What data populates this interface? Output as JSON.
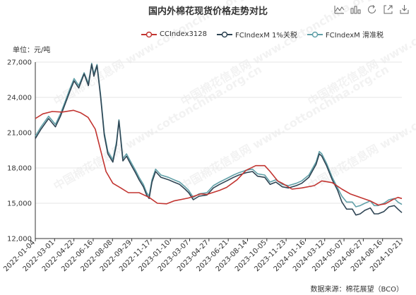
{
  "title": "国内外棉花现货价格走势对比",
  "toolbar": [
    {
      "name": "line-chart-icon"
    },
    {
      "name": "bar-chart-icon"
    },
    {
      "name": "restore-icon"
    },
    {
      "name": "data-view-icon"
    },
    {
      "name": "save-image-icon"
    }
  ],
  "unit_label": "单位：元/吨",
  "source": "数据来源：棉花展望（BCO）",
  "watermark": "中国棉花信息网 www.cottonchina.org.cn",
  "colors": {
    "cc": "#c23531",
    "fc1": "#2f4554",
    "fc2": "#61a0a8"
  },
  "chart_data": {
    "type": "line",
    "ylim": [
      12000,
      27000
    ],
    "yticks": [
      12000,
      15000,
      18000,
      21000,
      24000,
      27000
    ],
    "ytick_labels": [
      "12,000",
      "15,000",
      "18,000",
      "21,000",
      "24,000",
      "27,000"
    ],
    "xlim": [
      "2022-01-04",
      "2024-10-21"
    ],
    "xtick_labels": [
      "2022-01-04",
      "2022-03-01",
      "2022-04-22",
      "2022-06-16",
      "2022-08-08",
      "2022-09-29",
      "2022-11-17",
      "2023-01-10",
      "2023-03-07",
      "2023-04-27",
      "2023-06-21",
      "2023-08-14",
      "2023-10-05",
      "2023-11-23",
      "2024-01-16",
      "2024-03-12",
      "2024-05-07",
      "2024-06-27",
      "2024-08-16",
      "2024-10-21"
    ],
    "series": [
      {
        "name": "CCIndex3128",
        "color": "#c23531",
        "points": [
          [
            "2022-01-04",
            22200
          ],
          [
            "2022-01-25",
            22600
          ],
          [
            "2022-02-20",
            22800
          ],
          [
            "2022-03-20",
            22750
          ],
          [
            "2022-04-20",
            22900
          ],
          [
            "2022-05-10",
            22700
          ],
          [
            "2022-05-31",
            22300
          ],
          [
            "2022-06-20",
            21300
          ],
          [
            "2022-07-05",
            19500
          ],
          [
            "2022-07-20",
            17700
          ],
          [
            "2022-08-08",
            16700
          ],
          [
            "2022-08-30",
            16300
          ],
          [
            "2022-09-20",
            15900
          ],
          [
            "2022-10-20",
            15900
          ],
          [
            "2022-11-17",
            15500
          ],
          [
            "2022-12-10",
            15000
          ],
          [
            "2023-01-05",
            14950
          ],
          [
            "2023-01-25",
            15200
          ],
          [
            "2023-03-07",
            15450
          ],
          [
            "2023-04-10",
            15800
          ],
          [
            "2023-04-27",
            15750
          ],
          [
            "2023-06-01",
            16100
          ],
          [
            "2023-06-21",
            16350
          ],
          [
            "2023-07-20",
            17000
          ],
          [
            "2023-08-14",
            17800
          ],
          [
            "2023-09-10",
            18200
          ],
          [
            "2023-10-05",
            18200
          ],
          [
            "2023-10-20",
            17700
          ],
          [
            "2023-11-10",
            16900
          ],
          [
            "2023-11-23",
            16700
          ],
          [
            "2023-12-20",
            16200
          ],
          [
            "2024-01-16",
            16300
          ],
          [
            "2024-02-20",
            16500
          ],
          [
            "2024-03-12",
            16900
          ],
          [
            "2024-04-10",
            16750
          ],
          [
            "2024-05-07",
            16200
          ],
          [
            "2024-05-30",
            15800
          ],
          [
            "2024-06-27",
            15500
          ],
          [
            "2024-07-25",
            15200
          ],
          [
            "2024-08-16",
            14850
          ],
          [
            "2024-09-05",
            14950
          ],
          [
            "2024-09-25",
            15300
          ],
          [
            "2024-10-10",
            15500
          ],
          [
            "2024-10-21",
            15400
          ]
        ]
      },
      {
        "name": "FCIndexM 1%关税",
        "color": "#2f4554",
        "points": [
          [
            "2022-01-04",
            20500
          ],
          [
            "2022-01-20",
            21300
          ],
          [
            "2022-02-10",
            22200
          ],
          [
            "2022-03-01",
            21500
          ],
          [
            "2022-03-15",
            22400
          ],
          [
            "2022-03-25",
            23200
          ],
          [
            "2022-04-10",
            24500
          ],
          [
            "2022-04-22",
            25400
          ],
          [
            "2022-05-05",
            24800
          ],
          [
            "2022-05-20",
            26000
          ],
          [
            "2022-06-01",
            25000
          ],
          [
            "2022-06-10",
            26800
          ],
          [
            "2022-06-16",
            25800
          ],
          [
            "2022-06-25",
            26700
          ],
          [
            "2022-07-05",
            24000
          ],
          [
            "2022-07-15",
            20800
          ],
          [
            "2022-07-25",
            19200
          ],
          [
            "2022-08-08",
            18500
          ],
          [
            "2022-08-18",
            20000
          ],
          [
            "2022-08-25",
            22000
          ],
          [
            "2022-09-05",
            18600
          ],
          [
            "2022-09-15",
            19000
          ],
          [
            "2022-09-29",
            18200
          ],
          [
            "2022-10-10",
            17600
          ],
          [
            "2022-10-20",
            17000
          ],
          [
            "2022-11-01",
            16400
          ],
          [
            "2022-11-10",
            15700
          ],
          [
            "2022-11-17",
            15400
          ],
          [
            "2022-11-25",
            16800
          ],
          [
            "2022-12-05",
            17700
          ],
          [
            "2022-12-20",
            17200
          ],
          [
            "2023-01-10",
            17000
          ],
          [
            "2023-01-25",
            16800
          ],
          [
            "2023-02-10",
            16600
          ],
          [
            "2023-02-25",
            16200
          ],
          [
            "2023-03-07",
            15900
          ],
          [
            "2023-03-20",
            15300
          ],
          [
            "2023-04-05",
            15600
          ],
          [
            "2023-04-27",
            15700
          ],
          [
            "2023-05-15",
            16300
          ],
          [
            "2023-06-01",
            16600
          ],
          [
            "2023-06-21",
            16900
          ],
          [
            "2023-07-10",
            17200
          ],
          [
            "2023-07-25",
            17400
          ],
          [
            "2023-08-14",
            17600
          ],
          [
            "2023-09-01",
            17700
          ],
          [
            "2023-09-15",
            17300
          ],
          [
            "2023-10-05",
            17200
          ],
          [
            "2023-10-20",
            16600
          ],
          [
            "2023-11-05",
            16800
          ],
          [
            "2023-11-23",
            16400
          ],
          [
            "2023-12-10",
            16300
          ],
          [
            "2024-01-01",
            16500
          ],
          [
            "2024-01-16",
            16700
          ],
          [
            "2024-02-05",
            17200
          ],
          [
            "2024-02-25",
            18300
          ],
          [
            "2024-03-05",
            19200
          ],
          [
            "2024-03-12",
            19000
          ],
          [
            "2024-03-25",
            18200
          ],
          [
            "2024-04-10",
            17000
          ],
          [
            "2024-04-25",
            16100
          ],
          [
            "2024-05-07",
            15100
          ],
          [
            "2024-05-20",
            14500
          ],
          [
            "2024-06-05",
            14500
          ],
          [
            "2024-06-15",
            14000
          ],
          [
            "2024-06-27",
            14100
          ],
          [
            "2024-07-10",
            14400
          ],
          [
            "2024-07-25",
            14600
          ],
          [
            "2024-08-05",
            14100
          ],
          [
            "2024-08-16",
            14100
          ],
          [
            "2024-09-01",
            14300
          ],
          [
            "2024-09-15",
            14700
          ],
          [
            "2024-09-30",
            14800
          ],
          [
            "2024-10-10",
            14500
          ],
          [
            "2024-10-21",
            14200
          ]
        ]
      },
      {
        "name": "FCIndexM 滑准税",
        "color": "#61a0a8",
        "points": [
          [
            "2022-01-04",
            20700
          ],
          [
            "2022-01-20",
            21500
          ],
          [
            "2022-02-10",
            22400
          ],
          [
            "2022-03-01",
            21700
          ],
          [
            "2022-03-15",
            22600
          ],
          [
            "2022-03-25",
            23400
          ],
          [
            "2022-04-10",
            24700
          ],
          [
            "2022-04-22",
            25600
          ],
          [
            "2022-05-05",
            25000
          ],
          [
            "2022-05-20",
            26100
          ],
          [
            "2022-06-01",
            25200
          ],
          [
            "2022-06-10",
            26900
          ],
          [
            "2022-06-16",
            26000
          ],
          [
            "2022-06-25",
            26800
          ],
          [
            "2022-07-05",
            24200
          ],
          [
            "2022-07-15",
            21000
          ],
          [
            "2022-07-25",
            19400
          ],
          [
            "2022-08-08",
            18700
          ],
          [
            "2022-08-18",
            20200
          ],
          [
            "2022-08-25",
            22100
          ],
          [
            "2022-09-05",
            18800
          ],
          [
            "2022-09-15",
            19200
          ],
          [
            "2022-09-29",
            18400
          ],
          [
            "2022-10-10",
            17800
          ],
          [
            "2022-10-20",
            17200
          ],
          [
            "2022-11-01",
            16600
          ],
          [
            "2022-11-10",
            15900
          ],
          [
            "2022-11-17",
            15600
          ],
          [
            "2022-11-25",
            17000
          ],
          [
            "2022-12-05",
            17900
          ],
          [
            "2022-12-20",
            17400
          ],
          [
            "2023-01-10",
            17200
          ],
          [
            "2023-01-25",
            17000
          ],
          [
            "2023-02-10",
            16800
          ],
          [
            "2023-02-25",
            16400
          ],
          [
            "2023-03-07",
            16100
          ],
          [
            "2023-03-20",
            15500
          ],
          [
            "2023-04-05",
            15800
          ],
          [
            "2023-04-27",
            15900
          ],
          [
            "2023-05-15",
            16500
          ],
          [
            "2023-06-01",
            16800
          ],
          [
            "2023-06-21",
            17100
          ],
          [
            "2023-07-10",
            17400
          ],
          [
            "2023-07-25",
            17600
          ],
          [
            "2023-08-14",
            17800
          ],
          [
            "2023-09-01",
            17900
          ],
          [
            "2023-09-15",
            17500
          ],
          [
            "2023-10-05",
            17400
          ],
          [
            "2023-10-20",
            16800
          ],
          [
            "2023-11-05",
            17000
          ],
          [
            "2023-11-23",
            16600
          ],
          [
            "2023-12-10",
            16500
          ],
          [
            "2024-01-01",
            16700
          ],
          [
            "2024-01-16",
            16900
          ],
          [
            "2024-02-05",
            17400
          ],
          [
            "2024-02-25",
            18500
          ],
          [
            "2024-03-05",
            19400
          ],
          [
            "2024-03-12",
            19200
          ],
          [
            "2024-03-25",
            18400
          ],
          [
            "2024-04-10",
            17200
          ],
          [
            "2024-04-25",
            16300
          ],
          [
            "2024-05-07",
            15600
          ],
          [
            "2024-05-20",
            15100
          ],
          [
            "2024-06-05",
            15100
          ],
          [
            "2024-06-15",
            14700
          ],
          [
            "2024-06-27",
            14800
          ],
          [
            "2024-07-10",
            15000
          ],
          [
            "2024-07-25",
            15200
          ],
          [
            "2024-08-05",
            14800
          ],
          [
            "2024-08-16",
            14800
          ],
          [
            "2024-09-01",
            15000
          ],
          [
            "2024-09-15",
            15300
          ],
          [
            "2024-09-30",
            15400
          ],
          [
            "2024-10-10",
            15100
          ],
          [
            "2024-10-21",
            14900
          ]
        ]
      }
    ]
  }
}
